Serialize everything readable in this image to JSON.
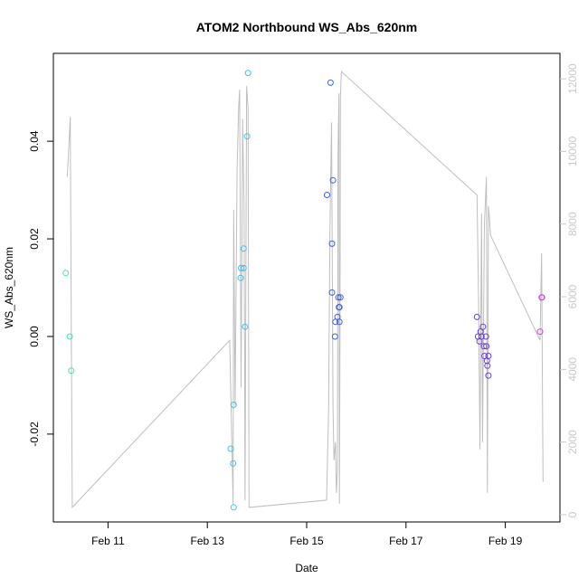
{
  "chart_data": {
    "type": "scatter",
    "title": "ATOM2 Northbound WS_Abs_620nm",
    "xlabel": "Date",
    "ylabel": "WS_Abs_620nm",
    "x_ticks": [
      "Feb 11",
      "Feb 13",
      "Feb 15",
      "Feb 17",
      "Feb 19"
    ],
    "x_tick_days": [
      11,
      13,
      15,
      17,
      19
    ],
    "xlim_days": [
      9.9,
      20.1
    ],
    "ylim": [
      -0.038,
      0.058
    ],
    "y_ticks": [
      "-0.02",
      "0.00",
      "0.02",
      "0.04"
    ],
    "y_tick_values": [
      -0.02,
      0.0,
      0.02,
      0.04
    ],
    "y2lim": [
      -200,
      12700
    ],
    "y2_ticks": [
      "0",
      "2000",
      "4000",
      "6000",
      "8000",
      "10000",
      "12000"
    ],
    "y2_tick_values": [
      0,
      2000,
      4000,
      6000,
      8000,
      10000,
      12000
    ],
    "grid": false,
    "series": [
      {
        "marker": "circle-open",
        "points": [
          {
            "x": 10.15,
            "y": 0.013,
            "color": "#3ee3b8"
          },
          {
            "x": 10.23,
            "y": 0.0,
            "color": "#3ee3b8"
          },
          {
            "x": 10.26,
            "y": -0.007,
            "color": "#3ee3b8"
          },
          {
            "x": 13.47,
            "y": -0.023,
            "color": "#3cc4e6"
          },
          {
            "x": 13.52,
            "y": -0.026,
            "color": "#3cc4e6"
          },
          {
            "x": 13.53,
            "y": -0.014,
            "color": "#3cc4e6"
          },
          {
            "x": 13.53,
            "y": -0.035,
            "color": "#3cc4e6"
          },
          {
            "x": 13.67,
            "y": 0.012,
            "color": "#3cc4e6"
          },
          {
            "x": 13.68,
            "y": 0.014,
            "color": "#3cc4e6"
          },
          {
            "x": 13.73,
            "y": 0.014,
            "color": "#3cc4e6"
          },
          {
            "x": 13.73,
            "y": 0.018,
            "color": "#3cc4e6"
          },
          {
            "x": 13.76,
            "y": 0.002,
            "color": "#3cc4e6"
          },
          {
            "x": 13.8,
            "y": 0.041,
            "color": "#3cc4e6"
          },
          {
            "x": 13.82,
            "y": 0.054,
            "color": "#3cc4e6"
          },
          {
            "x": 15.41,
            "y": 0.029,
            "color": "#3f5fe2"
          },
          {
            "x": 15.48,
            "y": 0.052,
            "color": "#3f5fe2"
          },
          {
            "x": 15.51,
            "y": 0.019,
            "color": "#3f5fe2"
          },
          {
            "x": 15.51,
            "y": 0.009,
            "color": "#3f5fe2"
          },
          {
            "x": 15.53,
            "y": 0.032,
            "color": "#3f5fe2"
          },
          {
            "x": 15.57,
            "y": 0.0,
            "color": "#3f5fe2"
          },
          {
            "x": 15.58,
            "y": 0.003,
            "color": "#3f5fe2"
          },
          {
            "x": 15.62,
            "y": 0.004,
            "color": "#3f5fe2"
          },
          {
            "x": 15.64,
            "y": 0.008,
            "color": "#3f5fe2"
          },
          {
            "x": 15.65,
            "y": 0.006,
            "color": "#3f5fe2"
          },
          {
            "x": 15.66,
            "y": 0.003,
            "color": "#3f5fe2"
          },
          {
            "x": 15.66,
            "y": 0.006,
            "color": "#3f5fe2"
          },
          {
            "x": 15.68,
            "y": 0.008,
            "color": "#3f5fe2"
          },
          {
            "x": 18.43,
            "y": 0.004,
            "color": "#6a3fe0"
          },
          {
            "x": 18.45,
            "y": 0.0,
            "color": "#6a3fe0"
          },
          {
            "x": 18.48,
            "y": -0.001,
            "color": "#6a3fe0"
          },
          {
            "x": 18.5,
            "y": 0.001,
            "color": "#6a3fe0"
          },
          {
            "x": 18.52,
            "y": 0.0,
            "color": "#6a3fe0"
          },
          {
            "x": 18.55,
            "y": 0.002,
            "color": "#6a3fe0"
          },
          {
            "x": 18.57,
            "y": -0.002,
            "color": "#6a3fe0"
          },
          {
            "x": 18.58,
            "y": -0.004,
            "color": "#6a3fe0"
          },
          {
            "x": 18.61,
            "y": 0.0,
            "color": "#6a3fe0"
          },
          {
            "x": 18.62,
            "y": -0.002,
            "color": "#6a3fe0"
          },
          {
            "x": 18.63,
            "y": -0.005,
            "color": "#6a3fe0"
          },
          {
            "x": 18.64,
            "y": -0.006,
            "color": "#6a3fe0"
          },
          {
            "x": 18.66,
            "y": -0.004,
            "color": "#6a3fe0"
          },
          {
            "x": 18.66,
            "y": -0.008,
            "color": "#6a3fe0"
          },
          {
            "x": 19.7,
            "y": 0.001,
            "color": "#e03fe0"
          },
          {
            "x": 19.73,
            "y": 0.008,
            "color": "#e03fe0"
          },
          {
            "x": 19.74,
            "y": 0.008,
            "color": "#e03fe0"
          }
        ]
      },
      {
        "axis": "right",
        "color": "#bebebe",
        "type": "line",
        "x": [
          10.18,
          10.24,
          10.26,
          10.28,
          13.45,
          13.52,
          13.53,
          13.56,
          13.6,
          13.63,
          13.65,
          13.68,
          13.71,
          13.74,
          13.76,
          13.79,
          13.82,
          13.84,
          15.4,
          15.44,
          15.47,
          15.5,
          15.53,
          15.55,
          15.58,
          15.6,
          15.62,
          15.63,
          15.65,
          15.66,
          15.67,
          15.68,
          15.7,
          18.43,
          18.46,
          18.49,
          18.52,
          18.54,
          18.58,
          18.62,
          18.64,
          18.66,
          18.68,
          18.7,
          19.7,
          19.73,
          19.76
        ],
        "values": [
          9300,
          10950,
          5200,
          200,
          4800,
          300,
          8400,
          3000,
          9500,
          11200,
          11700,
          3500,
          10900,
          8500,
          400,
          11800,
          11200,
          200,
          400,
          2800,
          8000,
          10800,
          3000,
          1500,
          2000,
          600,
          1200,
          9800,
          11600,
          300,
          4800,
          11500,
          12200,
          8800,
          6000,
          1800,
          8300,
          2000,
          8000,
          9300,
          600,
          8500,
          8200,
          7700,
          4800,
          7200,
          900
        ]
      }
    ]
  }
}
